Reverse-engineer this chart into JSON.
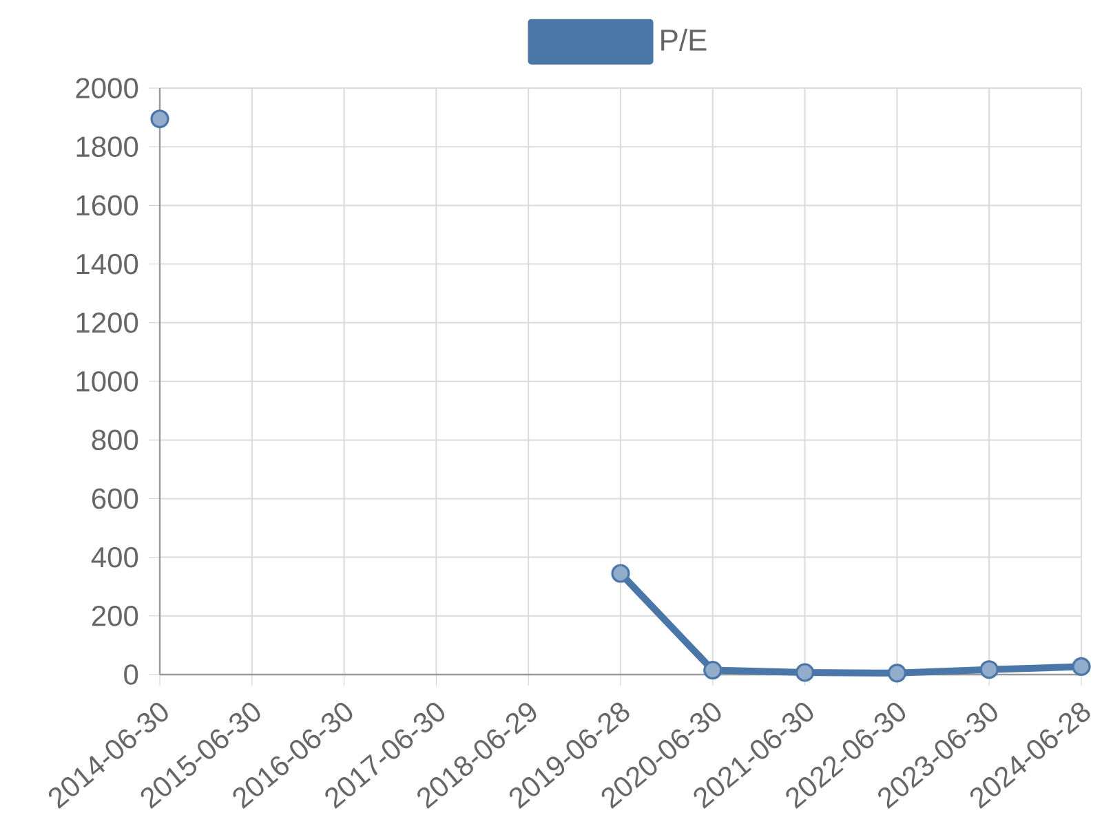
{
  "chart_data": {
    "type": "line",
    "categories": [
      "2014-06-30",
      "2015-06-30",
      "2016-06-30",
      "2017-06-30",
      "2018-06-29",
      "2019-06-28",
      "2020-06-30",
      "2021-06-30",
      "2022-06-30",
      "2023-06-30",
      "2024-06-28"
    ],
    "series": [
      {
        "name": "P/E",
        "color": "#4a76a8",
        "values": [
          1895,
          null,
          null,
          null,
          null,
          345,
          15,
          7,
          5,
          17,
          27
        ]
      }
    ],
    "ylim": [
      0,
      2000
    ],
    "yticks": [
      0,
      200,
      400,
      600,
      800,
      1000,
      1200,
      1400,
      1600,
      1800,
      2000
    ],
    "grid": true,
    "legend": "top",
    "marker": "circle",
    "line_style": "solid"
  }
}
